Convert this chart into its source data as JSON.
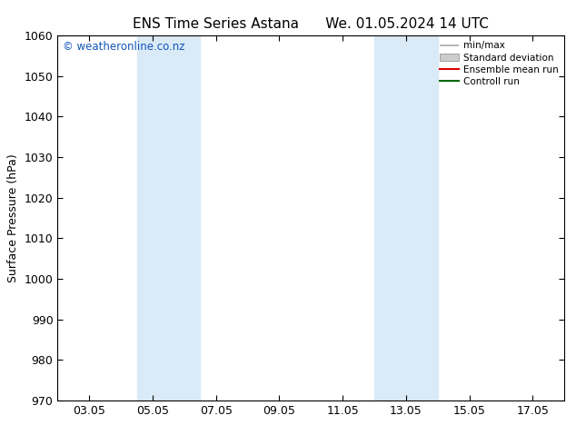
{
  "title_left": "ENS Time Series Astana",
  "title_right": "We. 01.05.2024 14 UTC",
  "ylabel": "Surface Pressure (hPa)",
  "ylim": [
    970,
    1060
  ],
  "yticks": [
    970,
    980,
    990,
    1000,
    1010,
    1020,
    1030,
    1040,
    1050,
    1060
  ],
  "xtick_labels": [
    "03.05",
    "05.05",
    "07.05",
    "09.05",
    "11.05",
    "13.05",
    "15.05",
    "17.05"
  ],
  "xtick_positions": [
    2,
    4,
    6,
    8,
    10,
    12,
    14,
    16
  ],
  "xlim": [
    1,
    17
  ],
  "shaded_bands": [
    {
      "x_start": 3.5,
      "x_end": 5.5
    },
    {
      "x_start": 11.0,
      "x_end": 13.0
    }
  ],
  "shaded_color": "#daeaf7",
  "watermark_text": "© weatheronline.co.nz",
  "watermark_color": "#1155bb",
  "legend_entries": [
    {
      "label": "min/max",
      "color": "#aaaaaa",
      "style": "minmax"
    },
    {
      "label": "Standard deviation",
      "color": "#cccccc",
      "style": "bar"
    },
    {
      "label": "Ensemble mean run",
      "color": "#dd0000",
      "style": "line"
    },
    {
      "label": "Controll run",
      "color": "#006600",
      "style": "line"
    }
  ],
  "background_color": "#ffffff",
  "title_fontsize": 11,
  "label_fontsize": 9,
  "tick_fontsize": 9
}
